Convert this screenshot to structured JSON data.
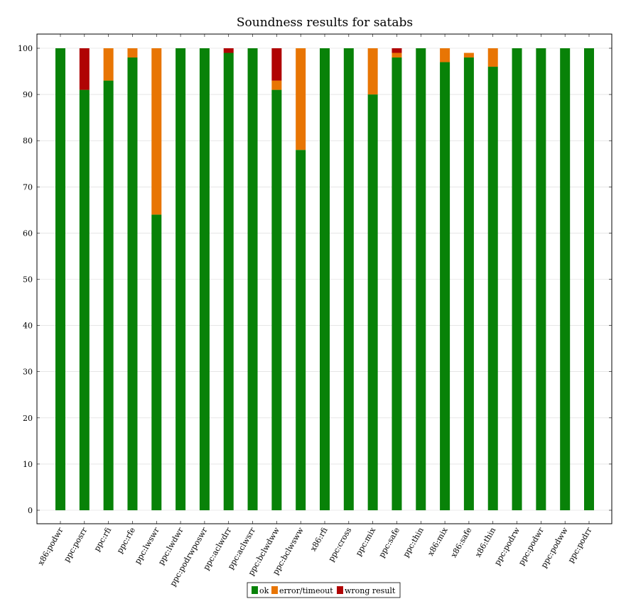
{
  "chart_data": {
    "type": "bar",
    "stacked": true,
    "title": "Soundness results for satabs",
    "xlabel": "",
    "ylabel": "",
    "ylim": [
      0,
      100
    ],
    "yticks": [
      0,
      10,
      20,
      30,
      40,
      50,
      60,
      70,
      80,
      90,
      100
    ],
    "grid": true,
    "legend_position": "bottom-center",
    "categories": [
      "x86:podwr",
      "ppc:posrr",
      "ppc:rfi",
      "ppc:rfe",
      "ppc:lwswr",
      "ppc:lwdwr",
      "ppc:podrwposwr",
      "ppc:aclwdrr",
      "ppc:aclwsrr",
      "ppc:bclwdww",
      "ppc:bclwsww",
      "x86:rfi",
      "ppc:cross",
      "ppc:mix",
      "ppc:safe",
      "ppc:thin",
      "x86:mix",
      "x86:safe",
      "x86:thin",
      "ppc:podrw",
      "ppc:podwr",
      "ppc:podww",
      "ppc:podrr"
    ],
    "series": [
      {
        "name": "ok",
        "color": "#088208",
        "values": [
          100,
          91,
          93,
          98,
          64,
          100,
          100,
          99,
          100,
          91,
          78,
          100,
          100,
          90,
          98,
          100,
          97,
          98,
          96,
          100,
          100,
          100,
          100
        ]
      },
      {
        "name": "error/timeout",
        "color": "#e87504",
        "values": [
          0,
          0,
          7,
          2,
          36,
          0,
          0,
          0,
          0,
          2,
          22,
          0,
          0,
          10,
          1,
          0,
          3,
          1,
          4,
          0,
          0,
          0,
          0
        ]
      },
      {
        "name": "wrong result",
        "color": "#b00404",
        "values": [
          0,
          9,
          0,
          0,
          0,
          0,
          0,
          1,
          0,
          7,
          0,
          0,
          0,
          0,
          1,
          0,
          0,
          0,
          0,
          0,
          0,
          0,
          0
        ]
      }
    ]
  }
}
